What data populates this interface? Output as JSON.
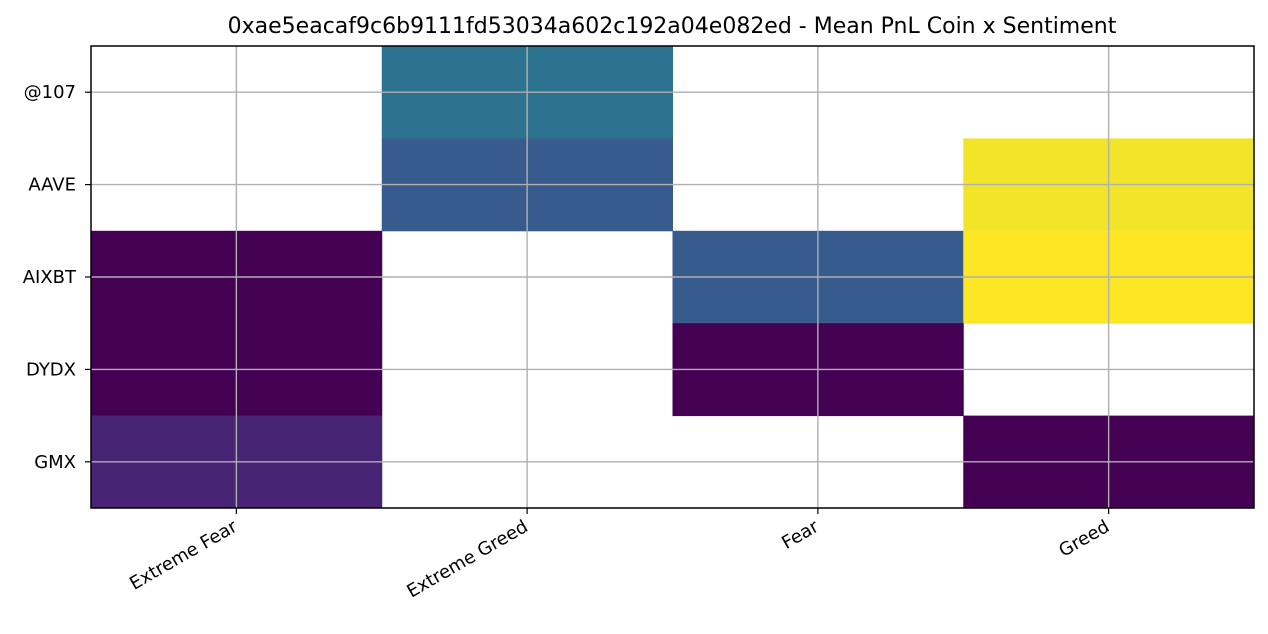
{
  "chart_data": {
    "type": "heatmap",
    "title": "0xae5eacaf9c6b9111fd53034a602c192a04e082ed - Mean PnL Coin x Sentiment",
    "xlabel": "",
    "ylabel": "",
    "x_categories": [
      "Extreme Fear",
      "Extreme Greed",
      "Fear",
      "Greed"
    ],
    "y_categories": [
      "@107",
      "AAVE",
      "AIXBT",
      "DYDX",
      "GMX"
    ],
    "values": [
      [
        null,
        0.47,
        null,
        null
      ],
      [
        null,
        0.36,
        null,
        0.99
      ],
      [
        0.0,
        null,
        0.36,
        1.0
      ],
      [
        0.0,
        null,
        0.0,
        null
      ],
      [
        0.13,
        null,
        null,
        0.0
      ]
    ],
    "missing_cells": "blank",
    "colormap": "viridis",
    "grid": true,
    "colors": {
      "grid": "#b0b0b0",
      "frame": "#000000",
      "missing": "#ffffff"
    }
  }
}
